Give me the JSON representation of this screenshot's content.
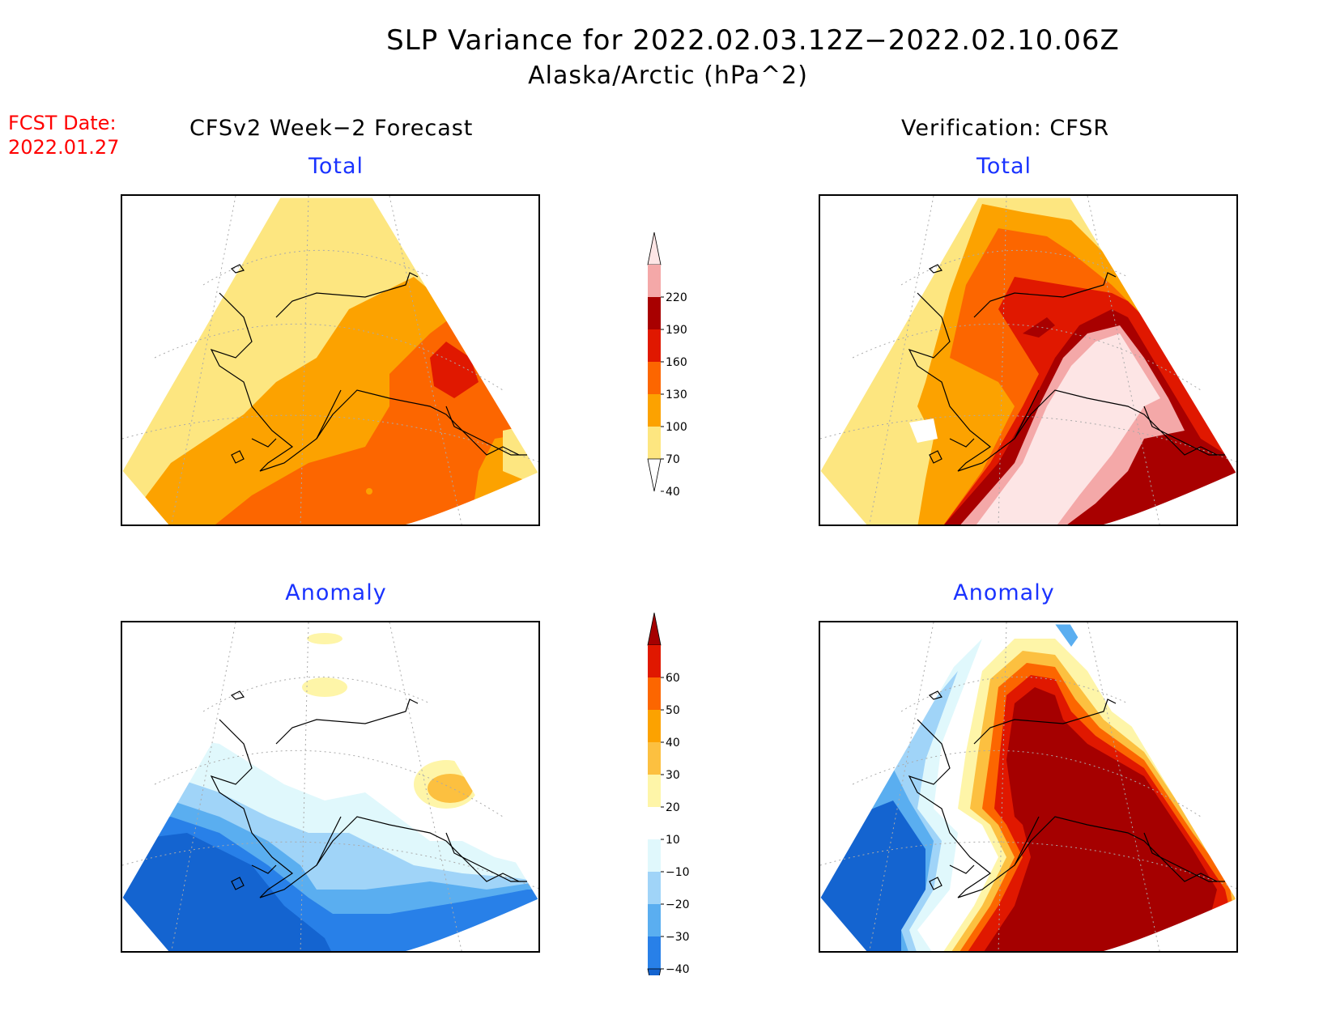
{
  "title": {
    "line1": "SLP Variance for 2022.02.03.12Z−2022.02.10.06Z",
    "line2": "Alaska/Arctic (hPa^2)"
  },
  "fcst_date": {
    "label": "FCST Date:",
    "value": "2022.01.27"
  },
  "columns": {
    "left": "CFSv2 Week−2 Forecast",
    "right": "Verification: CFSR"
  },
  "panels": {
    "forecast_total": "Total",
    "verification_total": "Total",
    "forecast_anomaly": "Anomaly",
    "verification_anomaly": "Anomaly"
  },
  "colorbar_total": {
    "labels": [
      "220",
      "190",
      "160",
      "130",
      "100",
      "70",
      "40"
    ],
    "colors": [
      "#fde5e5",
      "#f4a8a8",
      "#a80000",
      "#e01800",
      "#fc6600",
      "#fca200",
      "#fde680",
      "#ffffff"
    ]
  },
  "colorbar_anomaly": {
    "labels": [
      "60",
      "50",
      "40",
      "30",
      "20",
      "10",
      "−10",
      "−20",
      "−30",
      "−40"
    ],
    "colors": [
      "#a50000",
      "#e01800",
      "#fc6600",
      "#fca200",
      "#fcc040",
      "#fef5a8",
      "#ffffff",
      "#e0f8fc",
      "#a0d4f8",
      "#5aaef0",
      "#2880e8",
      "#1464d0"
    ]
  }
}
